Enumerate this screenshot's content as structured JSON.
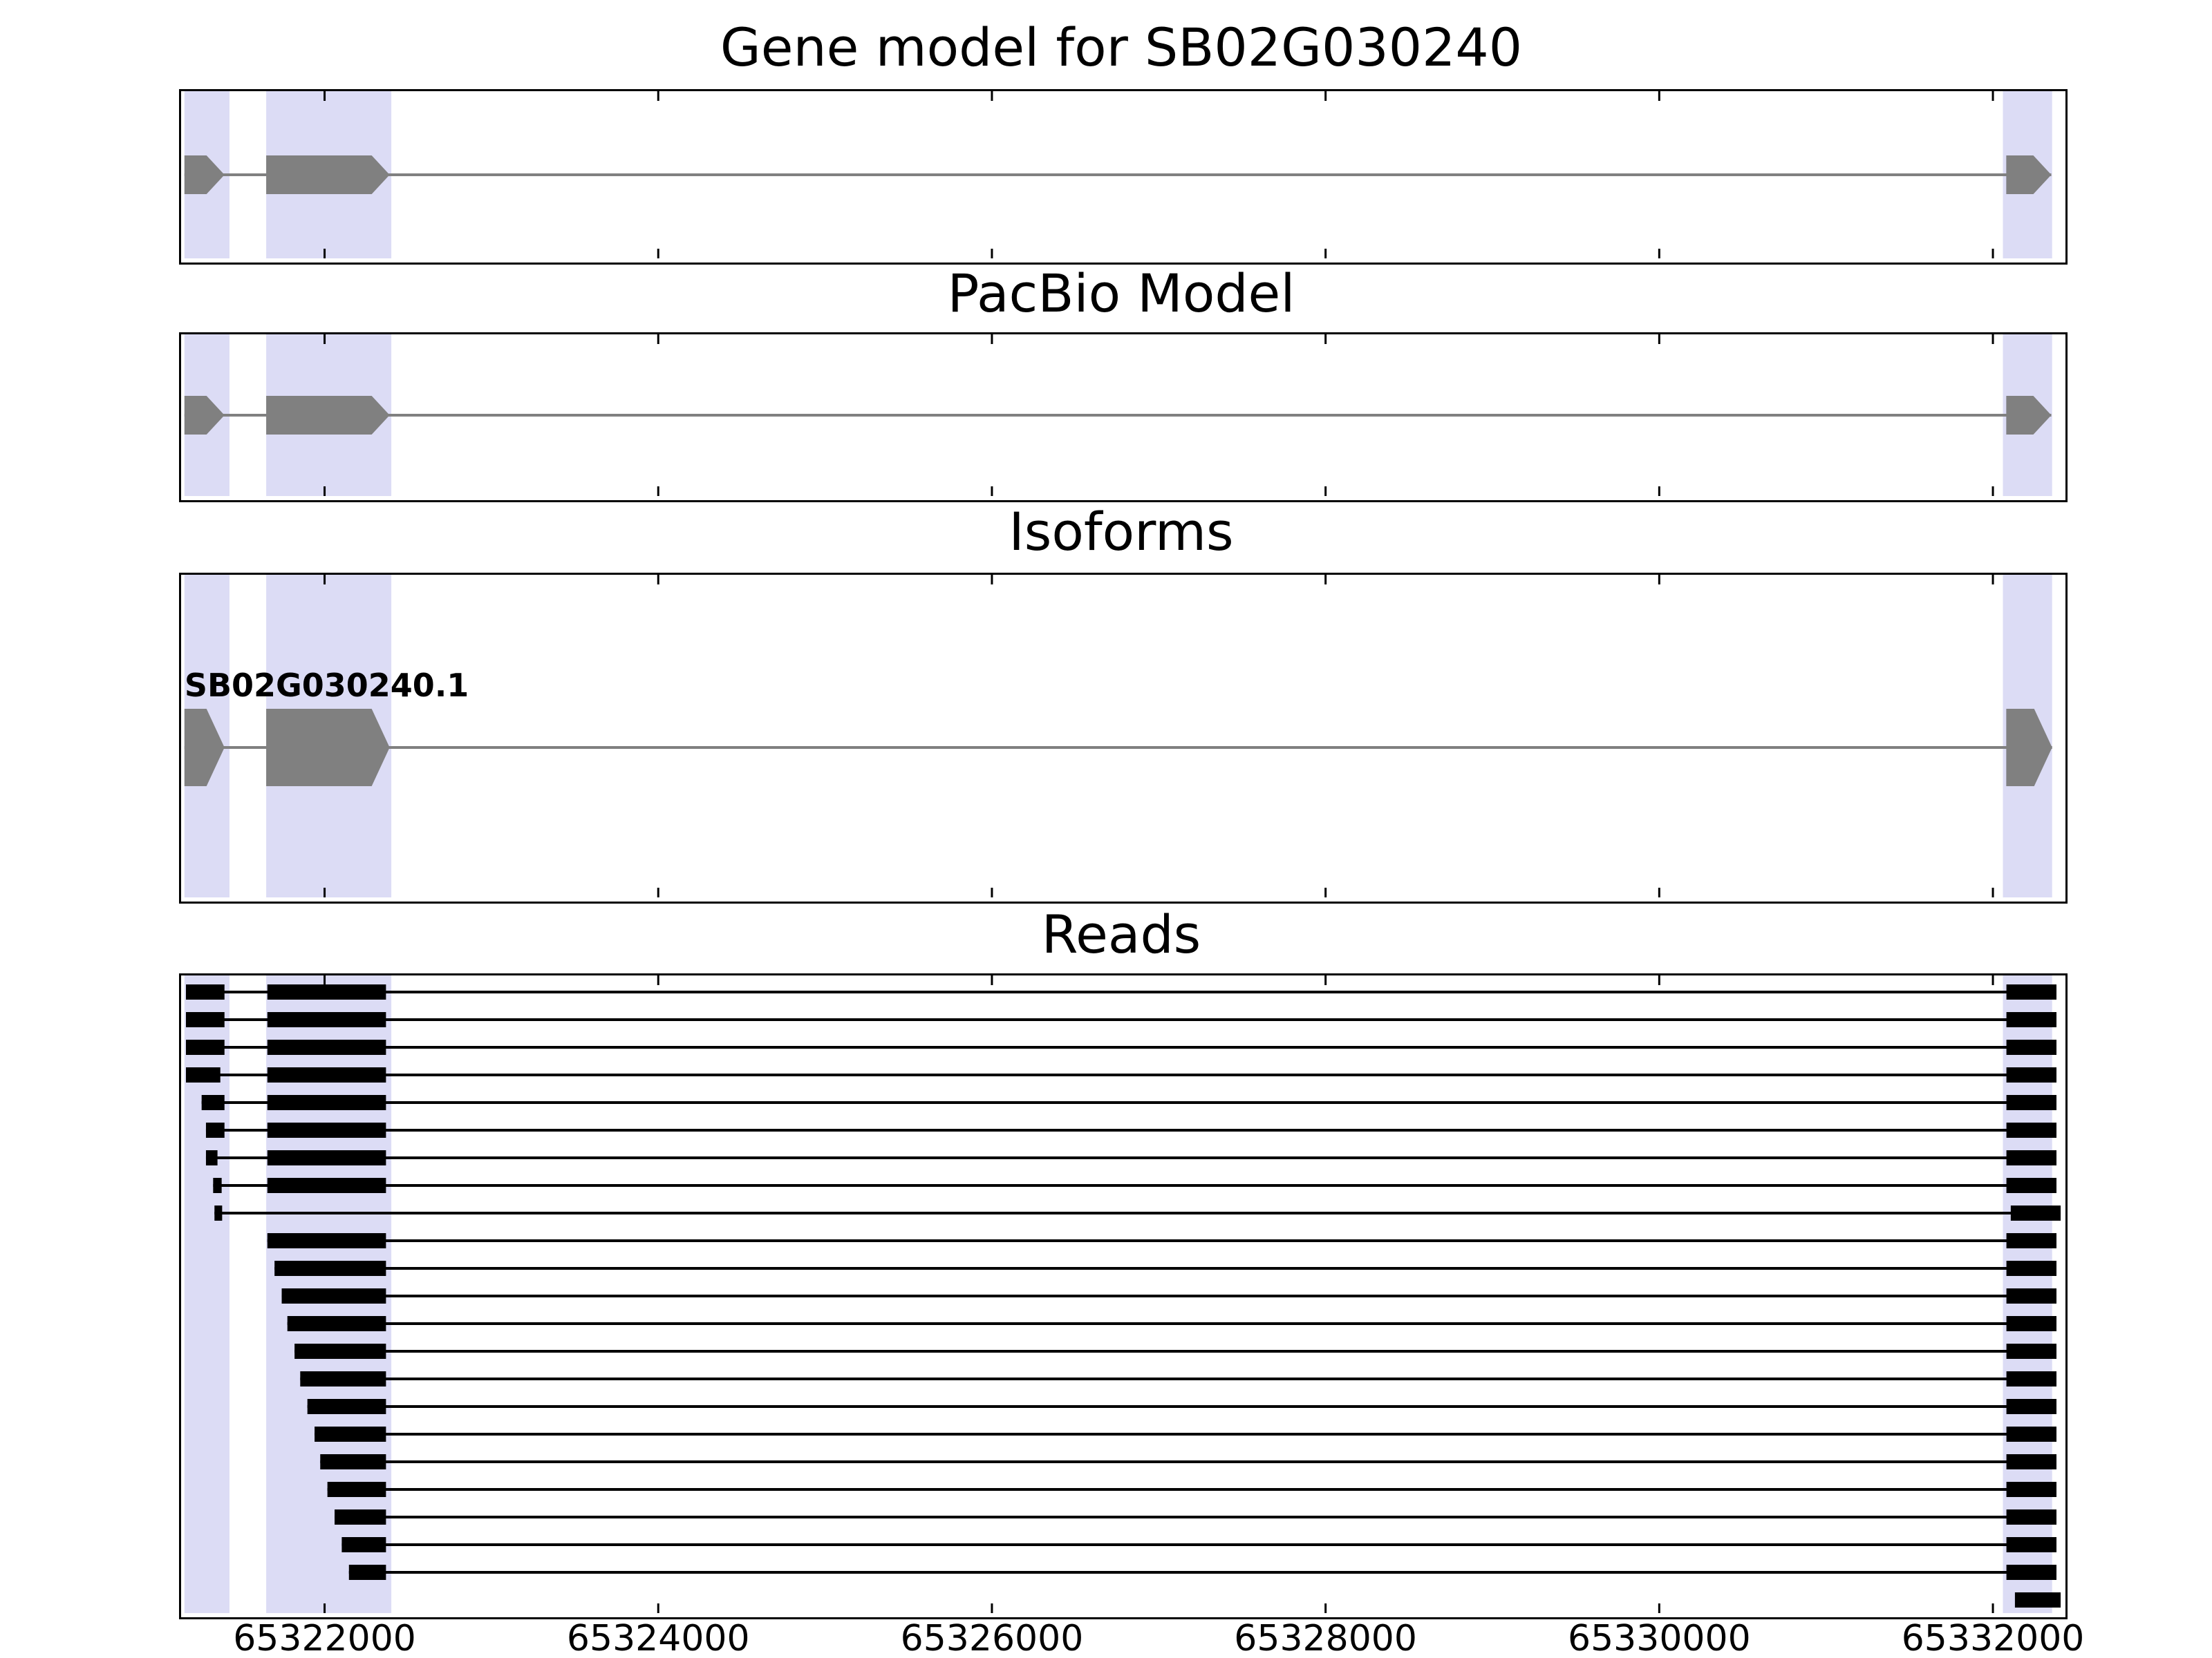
{
  "chart_data": {
    "type": "gene-model-browser",
    "title": "Gene model for SB02G030240",
    "xlim": [
      65321140,
      65332410
    ],
    "xticks": [
      65322000,
      65324000,
      65326000,
      65328000,
      65330000,
      65332000
    ],
    "xtick_labels": [
      "65322000",
      "65324000",
      "65326000",
      "65328000",
      "65330000",
      "65332000"
    ],
    "highlight_regions": [
      [
        65321160,
        65321430
      ],
      [
        65321650,
        65322400
      ],
      [
        65332060,
        65332355
      ]
    ],
    "colors": {
      "background": "#ffffff",
      "panel_border": "#000000",
      "highlight": "#dcdcf5",
      "gene": "#808080",
      "read": "#000000",
      "text": "#000000"
    },
    "panels": [
      {
        "name": "gene-model",
        "title": "Gene model for SB02G030240",
        "track": {
          "span": [
            65321160,
            65332350
          ],
          "exons": [
            [
              65321160,
              65321400
            ],
            [
              65321650,
              65322390
            ],
            [
              65332080,
              65332350
            ]
          ],
          "strand": "+"
        }
      },
      {
        "name": "pacbio-model",
        "title": "PacBio Model",
        "track": {
          "span": [
            65321160,
            65332350
          ],
          "exons": [
            [
              65321160,
              65321400
            ],
            [
              65321650,
              65322390
            ],
            [
              65332080,
              65332350
            ]
          ],
          "strand": "+"
        }
      },
      {
        "name": "isoforms",
        "title": "Isoforms",
        "isoforms": [
          {
            "label": "SB02G030240.1",
            "span": [
              65321160,
              65332355
            ],
            "exons": [
              [
                65321160,
                65321400
              ],
              [
                65321650,
                65322390
              ],
              [
                65332080,
                65332355
              ]
            ],
            "strand": "+"
          }
        ]
      },
      {
        "name": "reads",
        "title": "Reads",
        "reads": [
          {
            "blocks": [
              [
                65321169,
                65321400
              ],
              [
                65321657,
                65322368
              ],
              [
                65332081,
                65332381
              ]
            ]
          },
          {
            "blocks": [
              [
                65321169,
                65321400
              ],
              [
                65321657,
                65322368
              ],
              [
                65332081,
                65332381
              ]
            ]
          },
          {
            "blocks": [
              [
                65321169,
                65321400
              ],
              [
                65321657,
                65322368
              ],
              [
                65332081,
                65332381
              ]
            ]
          },
          {
            "blocks": [
              [
                65321169,
                65321375
              ],
              [
                65321657,
                65322368
              ],
              [
                65332081,
                65332381
              ]
            ]
          },
          {
            "blocks": [
              [
                65321263,
                65321400
              ],
              [
                65321657,
                65322368
              ],
              [
                65332081,
                65332381
              ]
            ]
          },
          {
            "blocks": [
              [
                65321289,
                65321400
              ],
              [
                65321657,
                65322368
              ],
              [
                65332081,
                65332381
              ]
            ]
          },
          {
            "blocks": [
              [
                65321289,
                65321358
              ],
              [
                65321657,
                65322368
              ],
              [
                65332081,
                65332381
              ]
            ]
          },
          {
            "blocks": [
              [
                65321332,
                65321383
              ],
              [
                65321657,
                65322368
              ],
              [
                65332081,
                65332381
              ]
            ]
          },
          {
            "blocks": [
              [
                65321340,
                65321386
              ],
              [
                65332107,
                65332406
              ]
            ]
          },
          {
            "blocks": [
              [
                65321657,
                65322368
              ],
              [
                65332081,
                65332381
              ]
            ]
          },
          {
            "blocks": [
              [
                65321700,
                65322368
              ],
              [
                65332081,
                65332381
              ]
            ]
          },
          {
            "blocks": [
              [
                65321743,
                65322368
              ],
              [
                65332081,
                65332381
              ]
            ]
          },
          {
            "blocks": [
              [
                65321777,
                65322368
              ],
              [
                65332081,
                65332381
              ]
            ]
          },
          {
            "blocks": [
              [
                65321820,
                65322368
              ],
              [
                65332081,
                65332381
              ]
            ]
          },
          {
            "blocks": [
              [
                65321854,
                65322368
              ],
              [
                65332081,
                65332381
              ]
            ]
          },
          {
            "blocks": [
              [
                65321897,
                65322368
              ],
              [
                65332081,
                65332381
              ]
            ]
          },
          {
            "blocks": [
              [
                65321940,
                65322368
              ],
              [
                65332081,
                65332381
              ]
            ]
          },
          {
            "blocks": [
              [
                65321974,
                65322368
              ],
              [
                65332081,
                65332381
              ]
            ]
          },
          {
            "blocks": [
              [
                65322017,
                65322368
              ],
              [
                65332081,
                65332381
              ]
            ]
          },
          {
            "blocks": [
              [
                65322060,
                65322368
              ],
              [
                65332081,
                65332381
              ]
            ]
          },
          {
            "blocks": [
              [
                65322103,
                65322368
              ],
              [
                65332081,
                65332381
              ]
            ]
          },
          {
            "blocks": [
              [
                65322146,
                65322368
              ],
              [
                65332081,
                65332381
              ]
            ]
          },
          {
            "blocks": [
              [
                65332132,
                65332406
              ]
            ]
          }
        ]
      }
    ]
  }
}
